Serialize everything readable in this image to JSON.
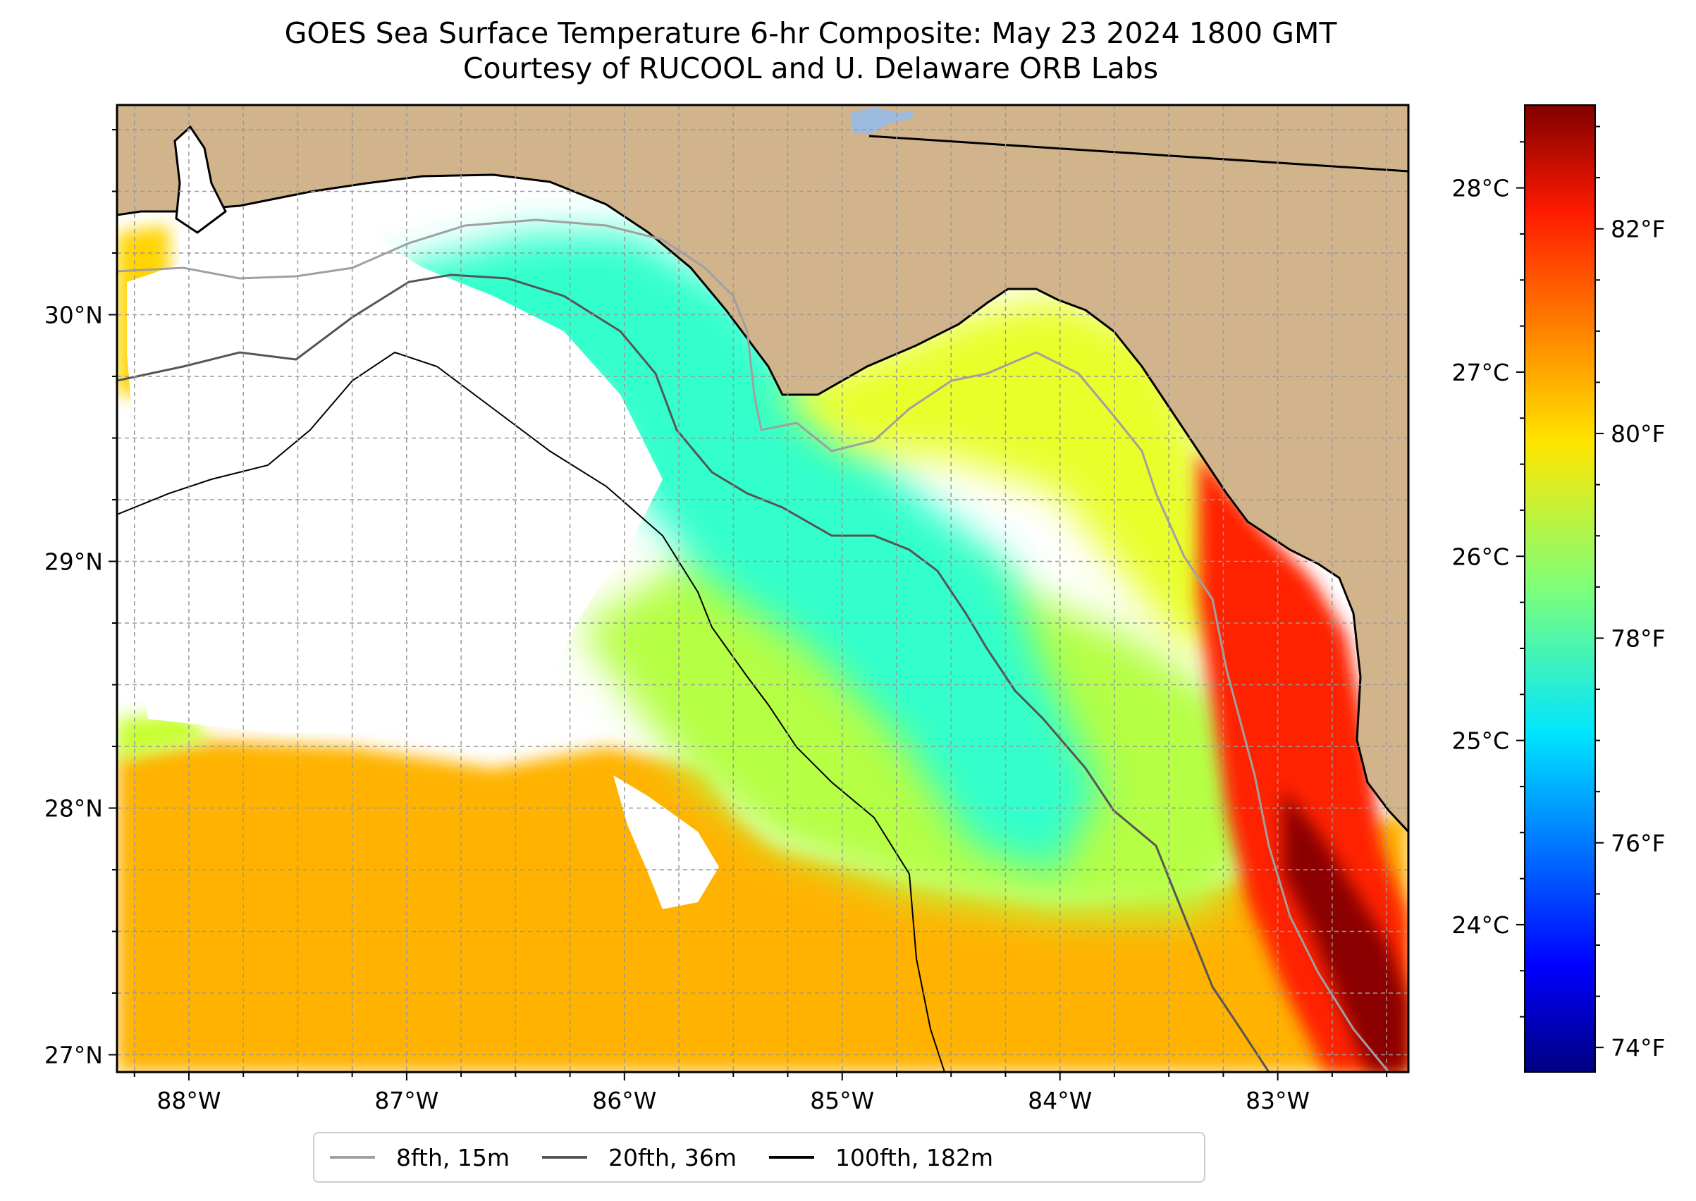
{
  "title": {
    "line1": "GOES Sea Surface Temperature 6-hr Composite: May 23 2024 1800 GMT",
    "line2": "Courtesy of RUCOOL and U. Delaware ORB Labs"
  },
  "map": {
    "lon_range": [
      -88.33,
      -82.4
    ],
    "lat_range": [
      26.93,
      30.85
    ],
    "lon_ticks": [
      {
        "value": -88,
        "label": "88°W"
      },
      {
        "value": -87,
        "label": "87°W"
      },
      {
        "value": -86,
        "label": "86°W"
      },
      {
        "value": -85,
        "label": "85°W"
      },
      {
        "value": -84,
        "label": "84°W"
      },
      {
        "value": -83,
        "label": "83°W"
      }
    ],
    "lat_ticks": [
      {
        "value": 30,
        "label": "30°N"
      },
      {
        "value": 29,
        "label": "29°N"
      },
      {
        "value": 28,
        "label": "28°N"
      },
      {
        "value": 27,
        "label": "27°N"
      }
    ],
    "gridlines": true,
    "colors": {
      "land": "#d2b48c",
      "no_data": "#ffffff",
      "lake": "#9dbbdf"
    }
  },
  "colorbar": {
    "colormap": "jet",
    "celsius_range": [
      23.2,
      28.45
    ],
    "celsius_ticks": [
      {
        "value": 24,
        "label": "24°C"
      },
      {
        "value": 25,
        "label": "25°C"
      },
      {
        "value": 26,
        "label": "26°C"
      },
      {
        "value": 27,
        "label": "27°C"
      },
      {
        "value": 28,
        "label": "28°C"
      }
    ],
    "fahrenheit_ticks": [
      {
        "value": 74,
        "label": "74°F"
      },
      {
        "value": 76,
        "label": "76°F"
      },
      {
        "value": 78,
        "label": "78°F"
      },
      {
        "value": 80,
        "label": "80°F"
      },
      {
        "value": 82,
        "label": "82°F"
      }
    ]
  },
  "legend": {
    "placement": "bottom-center",
    "entries": [
      {
        "label": "8fth, 15m",
        "color": "#a0a0a0"
      },
      {
        "label": "20fth, 36m",
        "color": "#555555"
      },
      {
        "label": "100fth, 182m",
        "color": "#000000"
      }
    ]
  }
}
